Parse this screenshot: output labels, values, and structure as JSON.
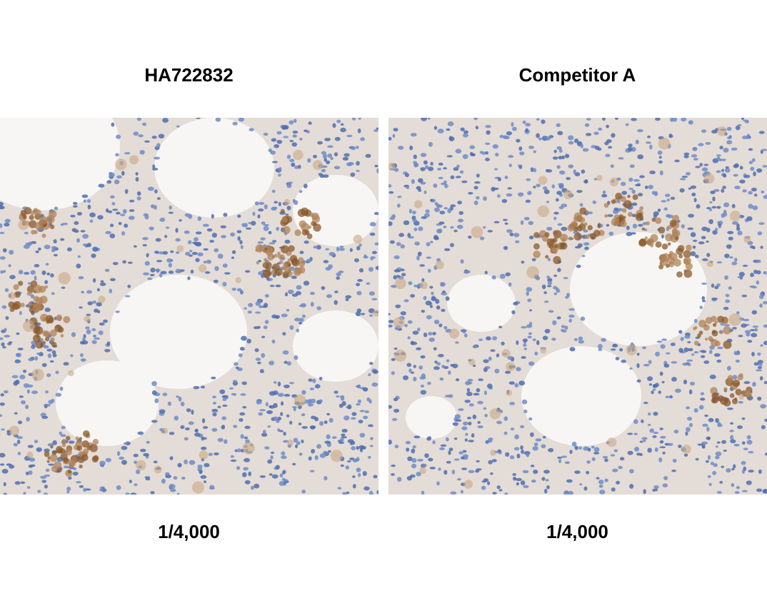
{
  "panels": [
    {
      "title": "HA722832",
      "dilution": "1/4,000"
    },
    {
      "title": "Competitor A",
      "dilution": "1/4,000"
    }
  ],
  "colors": {
    "background": "#f7f6f4",
    "tissue": "#e4dcd6",
    "nuclei": "#5f7fbf",
    "dab_stain": "#8a5a2b"
  }
}
